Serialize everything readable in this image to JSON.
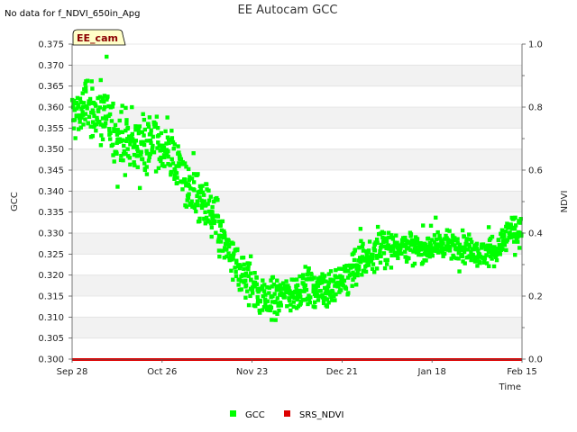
{
  "chart_data": {
    "type": "scatter",
    "title": "EE Autocam GCC",
    "note": "No data for f_NDVI_650in_Apg",
    "badge": "EE_cam",
    "xlabel": "Time",
    "ylabel": "GCC",
    "y2label": "NDVI",
    "ylim": [
      0.3,
      0.375
    ],
    "y2lim": [
      0.0,
      1.0
    ],
    "xlim_days": [
      0,
      140
    ],
    "grid": "horizontal bands",
    "legend_position": "bottom-center",
    "x_ticks": [
      {
        "day": 0,
        "label": "Sep 28"
      },
      {
        "day": 28,
        "label": "Oct 26"
      },
      {
        "day": 56,
        "label": "Nov 23"
      },
      {
        "day": 84,
        "label": "Dec 21"
      },
      {
        "day": 112,
        "label": "Jan 18"
      },
      {
        "day": 140,
        "label": "Feb 15"
      }
    ],
    "y_ticks": [
      "0.300",
      "0.305",
      "0.310",
      "0.315",
      "0.320",
      "0.325",
      "0.330",
      "0.335",
      "0.340",
      "0.345",
      "0.350",
      "0.355",
      "0.360",
      "0.365",
      "0.370",
      "0.375"
    ],
    "y2_ticks": [
      "0.0",
      "0.2",
      "0.4",
      "0.6",
      "0.8",
      "1.0"
    ],
    "series": [
      {
        "name": "GCC",
        "color": "#00ff00",
        "trend": [
          [
            0,
            0.358
          ],
          [
            5,
            0.36
          ],
          [
            10,
            0.357
          ],
          [
            15,
            0.353
          ],
          [
            20,
            0.351
          ],
          [
            25,
            0.352
          ],
          [
            30,
            0.349
          ],
          [
            33,
            0.346
          ],
          [
            36,
            0.341
          ],
          [
            40,
            0.338
          ],
          [
            44,
            0.333
          ],
          [
            47,
            0.328
          ],
          [
            50,
            0.323
          ],
          [
            53,
            0.32
          ],
          [
            56,
            0.318
          ],
          [
            60,
            0.314
          ],
          [
            64,
            0.315
          ],
          [
            68,
            0.316
          ],
          [
            72,
            0.317
          ],
          [
            76,
            0.317
          ],
          [
            80,
            0.317
          ],
          [
            84,
            0.319
          ],
          [
            88,
            0.322
          ],
          [
            92,
            0.324
          ],
          [
            96,
            0.326
          ],
          [
            100,
            0.327
          ],
          [
            104,
            0.327
          ],
          [
            108,
            0.326
          ],
          [
            112,
            0.327
          ],
          [
            116,
            0.327
          ],
          [
            120,
            0.327
          ],
          [
            124,
            0.326
          ],
          [
            128,
            0.325
          ],
          [
            132,
            0.326
          ],
          [
            136,
            0.33
          ],
          [
            140,
            0.33
          ]
        ],
        "spread": [
          [
            0,
            0.0065
          ],
          [
            20,
            0.0065
          ],
          [
            35,
            0.0055
          ],
          [
            45,
            0.005
          ],
          [
            55,
            0.0055
          ],
          [
            65,
            0.004
          ],
          [
            80,
            0.004
          ],
          [
            90,
            0.004
          ],
          [
            110,
            0.003
          ],
          [
            130,
            0.003
          ],
          [
            140,
            0.004
          ]
        ],
        "points_per_day": 9
      },
      {
        "name": "SRS_NDVI",
        "color": "#dd0000",
        "values": [
          [
            0,
            0.0
          ],
          [
            140,
            0.0
          ]
        ]
      }
    ]
  }
}
